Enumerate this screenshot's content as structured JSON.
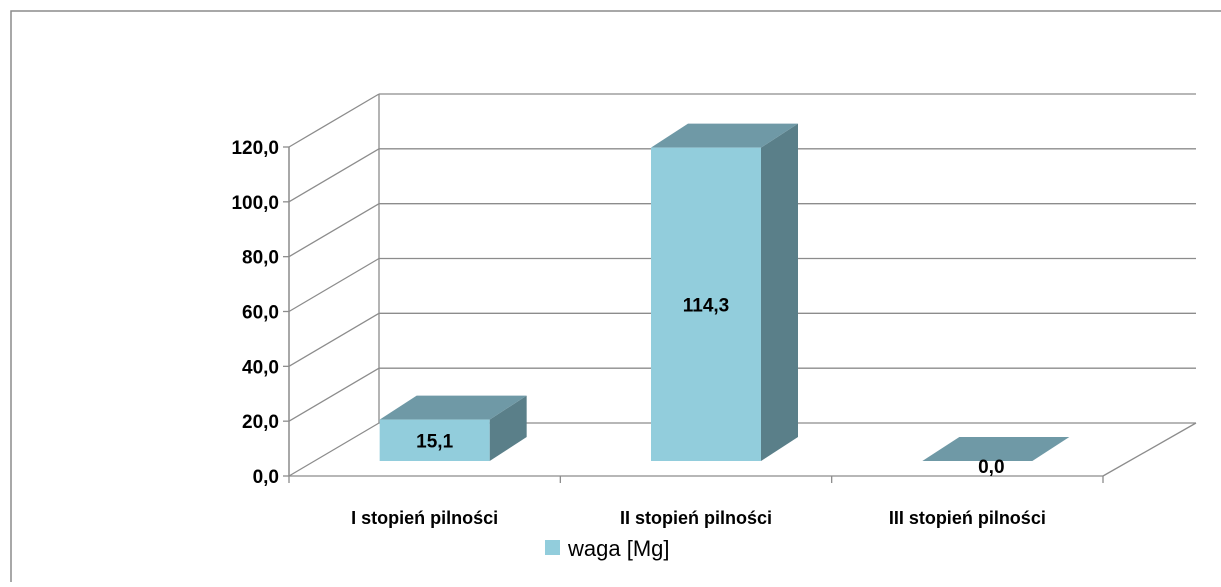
{
  "chart_data": {
    "type": "bar",
    "three_d": true,
    "categories": [
      "I stopień pilności",
      "II stopień pilności",
      "III stopień pilności"
    ],
    "series": [
      {
        "name": "waga [Mg]",
        "values": [
          15.1,
          114.3,
          0.0
        ],
        "color": "#92CDDC",
        "top_color": "#6F99A6",
        "side_color": "#5A7F89"
      }
    ],
    "data_labels": [
      "15,1",
      "114,3",
      "0,0"
    ],
    "y_ticks": [
      "0,0",
      "20,0",
      "40,0",
      "60,0",
      "80,0",
      "100,0",
      "120,0"
    ],
    "ylim": [
      0,
      120
    ],
    "grid": true,
    "legend_position": "bottom",
    "title": "",
    "xlabel": "",
    "ylabel": ""
  },
  "colors": {
    "gridline": "#8C8C8C",
    "frame": "#8C8C8C",
    "text": "#000000"
  }
}
